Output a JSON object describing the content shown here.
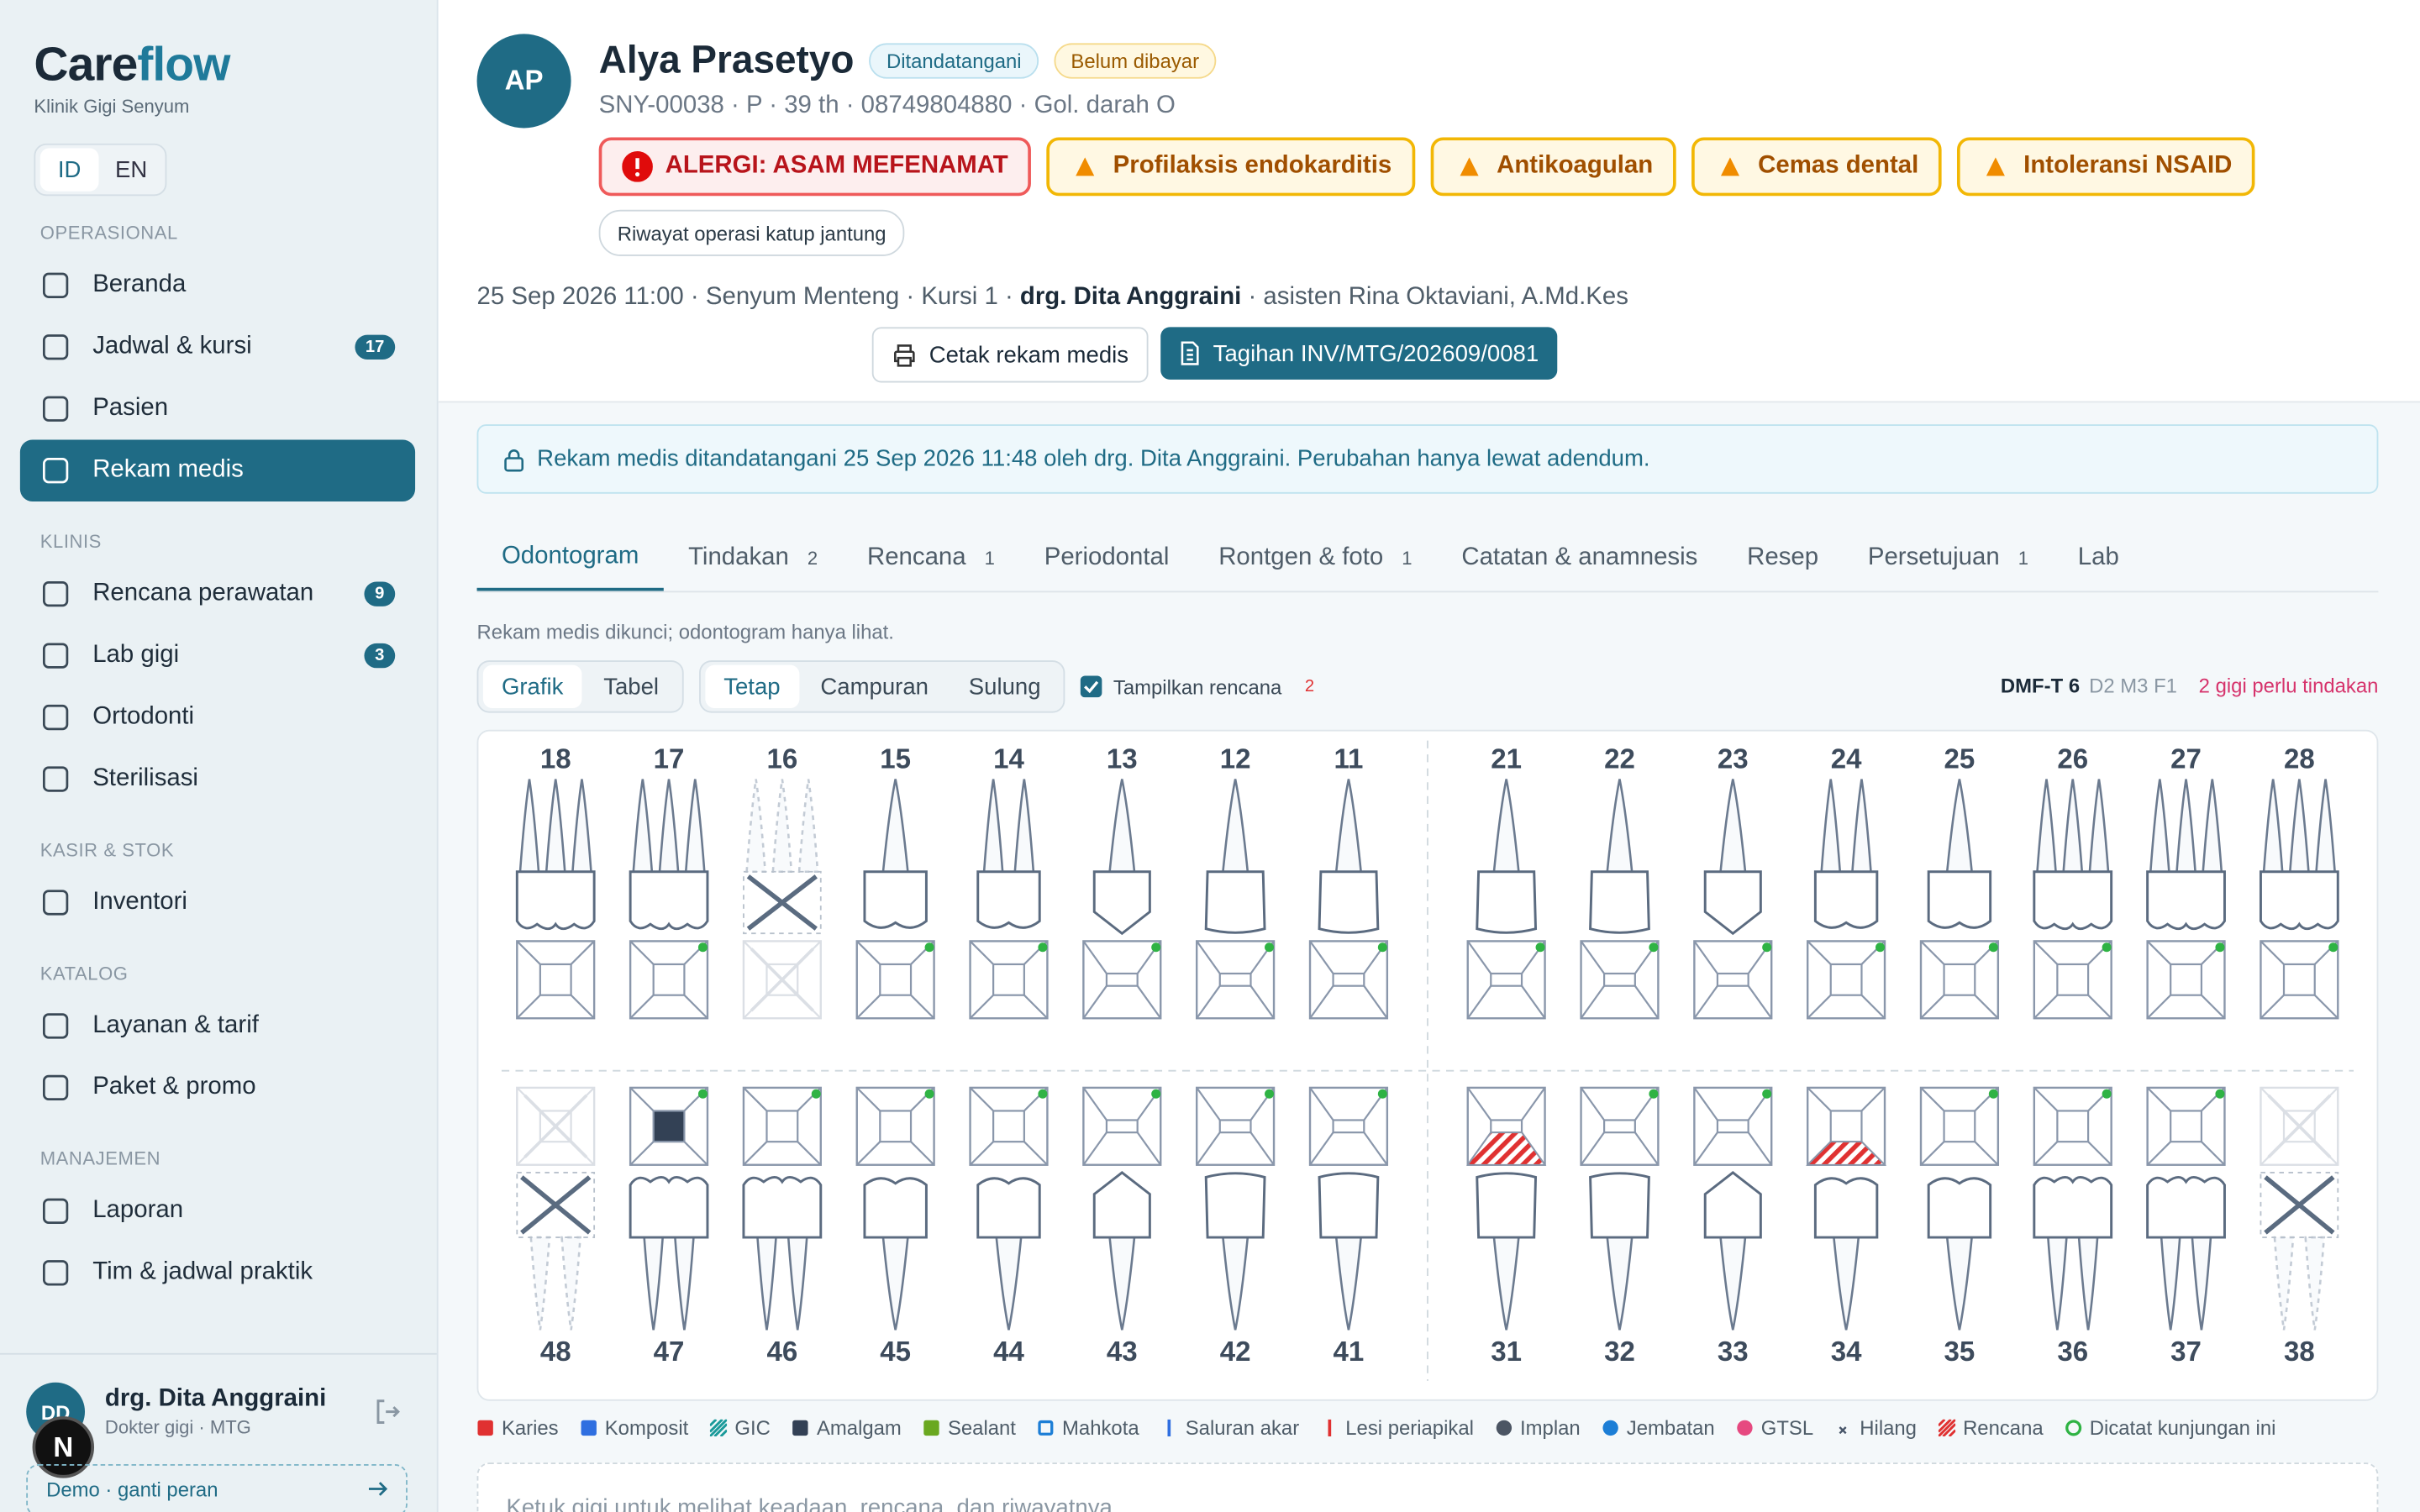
{
  "sidebar": {
    "brand": [
      "Care",
      "flow"
    ],
    "clinic": "Klinik Gigi Senyum",
    "languages": [
      "ID",
      "EN"
    ],
    "sections": [
      {
        "title": "OPERASIONAL",
        "items": [
          {
            "label": "Beranda"
          },
          {
            "label": "Jadwal & kursi",
            "badge": "17"
          },
          {
            "label": "Pasien"
          },
          {
            "label": "Rekam medis",
            "active": true
          }
        ]
      },
      {
        "title": "KLINIS",
        "items": [
          {
            "label": "Rencana perawatan",
            "badge": "9"
          },
          {
            "label": "Lab gigi",
            "badge": "3"
          },
          {
            "label": "Ortodonti"
          },
          {
            "label": "Sterilisasi"
          }
        ]
      },
      {
        "title": "KASIR & STOK",
        "items": [
          {
            "label": "Inventori"
          }
        ]
      },
      {
        "title": "KATALOG",
        "items": [
          {
            "label": "Layanan & tarif"
          },
          {
            "label": "Paket & promo"
          }
        ]
      },
      {
        "title": "MANAJEMEN",
        "items": [
          {
            "label": "Laporan"
          },
          {
            "label": "Tim & jadwal praktik"
          }
        ]
      }
    ],
    "user": {
      "initials": "DD",
      "name": "drg. Dita Anggraini",
      "role": "Dokter gigi · MTG"
    },
    "demo": "Demo · ganti peran",
    "launcher": "N"
  },
  "patient": {
    "initials": "AP",
    "name": "Alya Prasetyo",
    "status": [
      "Ditandatangani",
      "Belum dibayar"
    ],
    "meta": "SNY-00038 · P · 39 th · 08749804880 · Gol. darah O",
    "alerts": [
      {
        "label": "ALERGI: ASAM MEFENAMAT",
        "level": "danger"
      },
      {
        "label": "Profilaksis endokarditis",
        "level": "warning"
      },
      {
        "label": "Antikoagulan",
        "level": "warning"
      },
      {
        "label": "Cemas dental",
        "level": "warning"
      },
      {
        "label": "Intoleransi NSAID",
        "level": "warning"
      }
    ],
    "history": "Riwayat operasi katup jantung",
    "visit": {
      "before": "25 Sep 2026 11:00 · Senyum Menteng · Kursi 1 · ",
      "doctor": "drg. Dita Anggraini",
      "after": " · asisten Rina Oktaviani, A.Md.Kes"
    },
    "actions": [
      "Cetak rekam medis",
      "Tagihan INV/MTG/202609/0081"
    ]
  },
  "record": {
    "notice": "Rekam medis ditandatangani 25 Sep 2026 11:48 oleh drg. Dita Anggraini. Perubahan hanya lewat adendum.",
    "tabs": [
      {
        "label": "Odontogram",
        "active": true
      },
      {
        "label": "Tindakan",
        "count": "2"
      },
      {
        "label": "Rencana",
        "count": "1"
      },
      {
        "label": "Periodontal"
      },
      {
        "label": "Rontgen & foto",
        "count": "1"
      },
      {
        "label": "Catatan & anamnesis"
      },
      {
        "label": "Resep"
      },
      {
        "label": "Persetujuan",
        "count": "1"
      },
      {
        "label": "Lab"
      }
    ],
    "locked_note": "Rekam medis dikunci; odontogram hanya lihat.",
    "views": [
      "Grafik",
      "Tabel"
    ],
    "dentition": [
      "Tetap",
      "Campuran",
      "Sulung"
    ],
    "show_plan": "Tampilkan rencana",
    "plan_count": "2",
    "dmft": "DMF-T 6",
    "dmft_detail": "D2 M3 F1",
    "action_needed": "2 gigi perlu tindakan",
    "teeth": {
      "upper_right": [
        "18",
        "17",
        "16",
        "15",
        "14",
        "13",
        "12",
        "11"
      ],
      "upper_left": [
        "21",
        "22",
        "23",
        "24",
        "25",
        "26",
        "27",
        "28"
      ],
      "lower_right": [
        "48",
        "47",
        "46",
        "45",
        "44",
        "43",
        "42",
        "41"
      ],
      "lower_left": [
        "31",
        "32",
        "33",
        "34",
        "35",
        "36",
        "37",
        "38"
      ]
    },
    "legend": [
      {
        "label": "Karies",
        "color": "#e03131"
      },
      {
        "label": "Komposit",
        "color": "#2f6fe0"
      },
      {
        "label": "GIC",
        "color": "#1a9a9a"
      },
      {
        "label": "Amalgam",
        "color": "#334155"
      },
      {
        "label": "Sealant",
        "color": "#6aa820"
      },
      {
        "label": "Mahkota",
        "color": "#1c7ed6"
      },
      {
        "label": "Saluran akar",
        "color": "#2f6fe0"
      },
      {
        "label": "Lesi periapikal",
        "color": "#e03131"
      },
      {
        "label": "Implan",
        "color": "#4b5563"
      },
      {
        "label": "Jembatan",
        "color": "#1c7ed6"
      },
      {
        "label": "GTSL",
        "color": "#e64980"
      },
      {
        "label": "Hilang",
        "color": "#475569"
      },
      {
        "label": "Rencana",
        "color": "#e03131"
      },
      {
        "label": "Dicatat kunjungan ini",
        "color": "#2fb344"
      }
    ],
    "hint": "Ketuk gigi untuk melihat keadaan, rencana, dan riwayatnya."
  }
}
